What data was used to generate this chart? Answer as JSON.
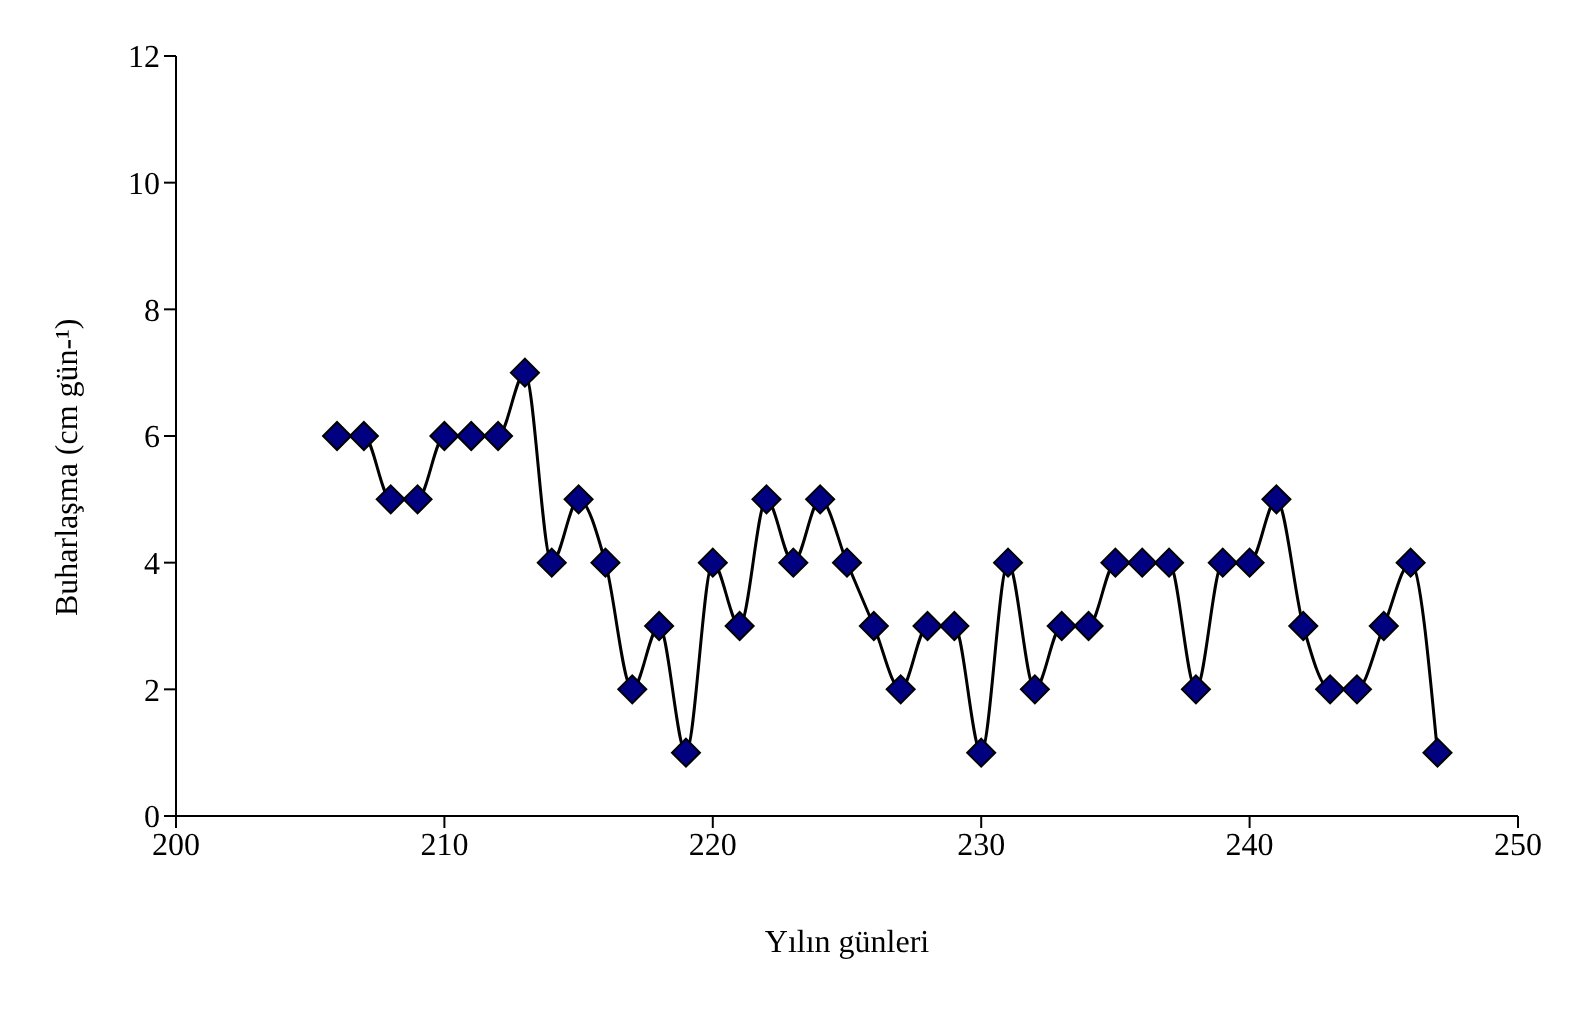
{
  "chart_data": {
    "type": "line",
    "xlabel": "Yılın günleri",
    "ylabel": "Buharlaşma (cm gün-¹)",
    "x": [
      206,
      207,
      208,
      209,
      210,
      211,
      212,
      213,
      214,
      215,
      216,
      217,
      218,
      219,
      220,
      221,
      222,
      223,
      224,
      225,
      226,
      227,
      228,
      229,
      230,
      231,
      232,
      233,
      234,
      235,
      236,
      237,
      238,
      239,
      240,
      241,
      242,
      243,
      244,
      245,
      246,
      247
    ],
    "series": [
      {
        "color": "#000080",
        "values": [
          6,
          6,
          5,
          5,
          6,
          6,
          6,
          7,
          4,
          5,
          4,
          2,
          3,
          1,
          4,
          3,
          5,
          4,
          5,
          4,
          3,
          2,
          3,
          3,
          1,
          4,
          2,
          3,
          3,
          4,
          4,
          4,
          2,
          4,
          4,
          5,
          3,
          2,
          2,
          3,
          4,
          1
        ]
      }
    ],
    "xlim": [
      200,
      250
    ],
    "xticks": [
      200,
      210,
      220,
      230,
      240,
      250
    ],
    "ylim": [
      0,
      12
    ],
    "yticks": [
      0,
      2,
      4,
      6,
      8,
      10,
      12
    ],
    "grid": false,
    "legend": false,
    "marker": "diamond",
    "line_style": "solid"
  }
}
